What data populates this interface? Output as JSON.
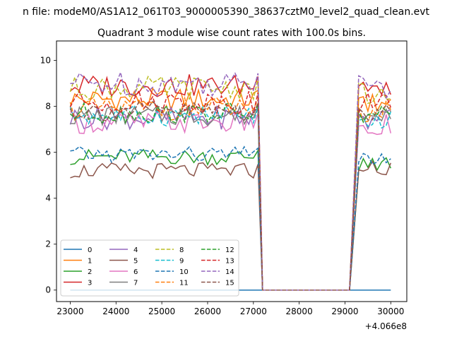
{
  "chart_data": {
    "type": "line",
    "suptitle": "n file: modeM0/AS1A12_061T03_9000005390_38637cztM0_level2_quad_clean.evt",
    "title": "Quadrant 3 module wise count rates with 100.0s bins.",
    "xlabel": "",
    "ylabel": "",
    "x_offset_label": "+4.066e8",
    "xlim": [
      22700,
      30350
    ],
    "ylim": [
      -0.5,
      10.85
    ],
    "xticks": [
      23000,
      24000,
      25000,
      26000,
      27000,
      28000,
      29000,
      30000
    ],
    "xtick_labels": [
      "23000",
      "24000",
      "25000",
      "26000",
      "27000",
      "28000",
      "29000",
      "30000"
    ],
    "yticks": [
      0,
      2,
      4,
      6,
      8,
      10
    ],
    "ytick_labels": [
      "0",
      "2",
      "4",
      "6",
      "8",
      "10"
    ],
    "grid": false,
    "legend_position": "lower-left",
    "legend_columns": 4,
    "x_segments": [
      [
        23000,
        27200
      ],
      [
        29100,
        30000
      ]
    ],
    "bin_width": 100,
    "gap_value": 0,
    "series": [
      {
        "name": "0",
        "color": "#1f77b4",
        "dash": "solid",
        "level1": 0,
        "level2": 0,
        "amp": 0
      },
      {
        "name": "1",
        "color": "#ff7f0e",
        "dash": "solid",
        "level1": 8.3,
        "level2": 8.2,
        "amp": 0.5
      },
      {
        "name": "2",
        "color": "#2ca02c",
        "dash": "solid",
        "level1": 5.8,
        "level2": 5.5,
        "amp": 0.35
      },
      {
        "name": "3",
        "color": "#d62728",
        "dash": "solid",
        "level1": 8.9,
        "level2": 8.6,
        "amp": 0.5
      },
      {
        "name": "4",
        "color": "#9467bd",
        "dash": "solid",
        "level1": 7.5,
        "level2": 7.4,
        "amp": 0.5
      },
      {
        "name": "5",
        "color": "#8c564b",
        "dash": "solid",
        "level1": 5.2,
        "level2": 5.3,
        "amp": 0.35
      },
      {
        "name": "6",
        "color": "#e377c2",
        "dash": "solid",
        "level1": 7.3,
        "level2": 7.2,
        "amp": 0.5
      },
      {
        "name": "7",
        "color": "#7f7f7f",
        "dash": "solid",
        "level1": 7.6,
        "level2": 7.5,
        "amp": 0.45
      },
      {
        "name": "8",
        "color": "#bcbd22",
        "dash": "dashed",
        "level1": 8.8,
        "level2": 8.6,
        "amp": 0.5
      },
      {
        "name": "9",
        "color": "#17becf",
        "dash": "dashed",
        "level1": 7.6,
        "level2": 7.5,
        "amp": 0.45
      },
      {
        "name": "10",
        "color": "#1f77b4",
        "dash": "dashed",
        "level1": 5.9,
        "level2": 5.8,
        "amp": 0.35
      },
      {
        "name": "11",
        "color": "#ff7f0e",
        "dash": "dashed",
        "level1": 7.9,
        "level2": 7.8,
        "amp": 0.5
      },
      {
        "name": "12",
        "color": "#2ca02c",
        "dash": "dashed",
        "level1": 7.7,
        "level2": 7.6,
        "amp": 0.45
      },
      {
        "name": "13",
        "color": "#d62728",
        "dash": "dashed",
        "level1": 8.2,
        "level2": 8.1,
        "amp": 0.5
      },
      {
        "name": "14",
        "color": "#9467bd",
        "dash": "dashed",
        "level1": 9.0,
        "level2": 8.9,
        "amp": 0.55
      },
      {
        "name": "15",
        "color": "#8c564b",
        "dash": "dashed",
        "level1": 7.8,
        "level2": 7.7,
        "amp": 0.45
      }
    ]
  }
}
